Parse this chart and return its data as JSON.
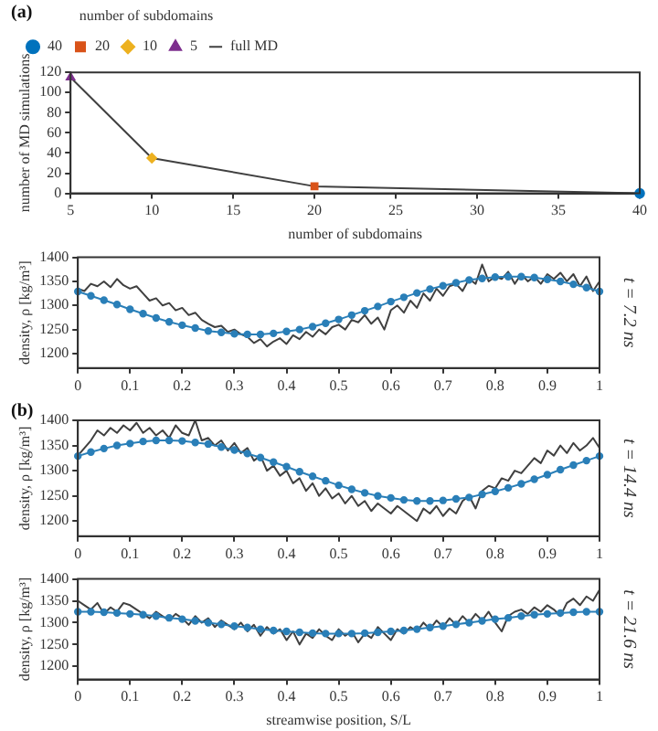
{
  "chart_data": [
    {
      "type": "line",
      "xlabel": "number of subdomains",
      "ylabel": "number of MD simulations",
      "annotations": [
        "(a)"
      ],
      "legend": "top left",
      "legend_title": "number of subdomains",
      "xlim": [
        5,
        40
      ],
      "xticks": [
        5,
        10,
        15,
        20,
        25,
        30,
        35,
        40
      ],
      "ylim": [
        0,
        120
      ],
      "yticks": [
        0,
        20,
        40,
        60,
        80,
        100,
        120
      ],
      "grid": false,
      "series": [
        {
          "name": "40",
          "type": "scatter",
          "marker": "circle",
          "color": "#0072bd",
          "x": [
            40
          ],
          "values": [
            0
          ]
        },
        {
          "name": "20",
          "type": "scatter",
          "marker": "square",
          "color": "#d95319",
          "x": [
            20
          ],
          "values": [
            7
          ]
        },
        {
          "name": "10",
          "type": "scatter",
          "marker": "diamond",
          "color": "#edb120",
          "x": [
            10
          ],
          "values": [
            35
          ]
        },
        {
          "name": "5",
          "type": "scatter",
          "marker": "triangle",
          "color": "#7e2f8e",
          "x": [
            5
          ],
          "values": [
            115
          ]
        },
        {
          "name": "full MD",
          "type": "line",
          "marker": "none",
          "color": "#404040",
          "x": [
            5,
            10,
            20,
            40
          ],
          "values": [
            115,
            35,
            7,
            0
          ]
        }
      ]
    },
    {
      "type": "line",
      "ylabel": "density, ρ [kg/m³]",
      "y2label": "t = 7.2 ns",
      "xlim": [
        0,
        1
      ],
      "xticks": [
        0,
        0.1,
        0.2,
        0.3,
        0.4,
        0.5,
        0.6,
        0.7,
        0.8,
        0.9,
        1
      ],
      "ylim": [
        1170,
        1400
      ],
      "yticks": [
        1200,
        1250,
        1300,
        1350,
        1400
      ],
      "grid": false,
      "series": [
        {
          "marker": "circle",
          "color": "#2a7fb8",
          "x": [
            0,
            0.025,
            0.05,
            0.075,
            0.1,
            0.125,
            0.15,
            0.175,
            0.2,
            0.225,
            0.25,
            0.275,
            0.3,
            0.325,
            0.35,
            0.375,
            0.4,
            0.425,
            0.45,
            0.475,
            0.5,
            0.525,
            0.55,
            0.575,
            0.6,
            0.625,
            0.65,
            0.675,
            0.7,
            0.725,
            0.75,
            0.775,
            0.8,
            0.825,
            0.85,
            0.875,
            0.9,
            0.925,
            0.95,
            0.975,
            1
          ],
          "values": [
            1329,
            1320,
            1311,
            1302,
            1292,
            1283,
            1274,
            1266,
            1259,
            1253,
            1247,
            1244,
            1241,
            1240,
            1240,
            1242,
            1246,
            1250,
            1256,
            1263,
            1271,
            1280,
            1289,
            1298,
            1308,
            1317,
            1326,
            1334,
            1341,
            1347,
            1353,
            1356,
            1359,
            1360,
            1360,
            1358,
            1354,
            1350,
            1344,
            1337,
            1329
          ]
        },
        {
          "marker": "none",
          "color": "#404040",
          "x": [
            0,
            0.0125,
            0.025,
            0.0375,
            0.05,
            0.0625,
            0.075,
            0.0875,
            0.1,
            0.1125,
            0.125,
            0.1375,
            0.15,
            0.1625,
            0.175,
            0.1875,
            0.2,
            0.2125,
            0.225,
            0.2375,
            0.25,
            0.2625,
            0.275,
            0.2875,
            0.3,
            0.3125,
            0.325,
            0.3375,
            0.35,
            0.3625,
            0.375,
            0.3875,
            0.4,
            0.4125,
            0.425,
            0.4375,
            0.45,
            0.4625,
            0.475,
            0.4875,
            0.5,
            0.5125,
            0.525,
            0.5375,
            0.55,
            0.5625,
            0.575,
            0.5875,
            0.6,
            0.6125,
            0.625,
            0.6375,
            0.65,
            0.6625,
            0.675,
            0.6875,
            0.7,
            0.7125,
            0.725,
            0.7375,
            0.75,
            0.7625,
            0.775,
            0.7875,
            0.8,
            0.8125,
            0.825,
            0.8375,
            0.85,
            0.8625,
            0.875,
            0.8875,
            0.9,
            0.9125,
            0.925,
            0.9375,
            0.95,
            0.9625,
            0.975,
            0.9875,
            1
          ],
          "values": [
            1335,
            1330,
            1345,
            1340,
            1350,
            1338,
            1355,
            1342,
            1335,
            1340,
            1325,
            1310,
            1315,
            1300,
            1305,
            1290,
            1295,
            1280,
            1285,
            1270,
            1262,
            1255,
            1258,
            1245,
            1250,
            1240,
            1235,
            1222,
            1230,
            1215,
            1225,
            1232,
            1220,
            1238,
            1230,
            1245,
            1235,
            1250,
            1240,
            1255,
            1260,
            1250,
            1270,
            1265,
            1280,
            1262,
            1275,
            1250,
            1290,
            1300,
            1285,
            1310,
            1295,
            1325,
            1310,
            1335,
            1320,
            1340,
            1345,
            1330,
            1355,
            1345,
            1385,
            1350,
            1360,
            1355,
            1370,
            1345,
            1365,
            1350,
            1360,
            1345,
            1365,
            1355,
            1368,
            1350,
            1365,
            1340,
            1360,
            1330,
            1350
          ]
        }
      ]
    },
    {
      "type": "line",
      "ylabel": "density, ρ [kg/m³]",
      "y2label": "t = 14.4 ns",
      "annotations": [
        "(b)"
      ],
      "xlim": [
        0,
        1
      ],
      "xticks": [
        0,
        0.1,
        0.2,
        0.3,
        0.4,
        0.5,
        0.6,
        0.7,
        0.8,
        0.9,
        1
      ],
      "ylim": [
        1170,
        1400
      ],
      "yticks": [
        1200,
        1250,
        1300,
        1350,
        1400
      ],
      "grid": false,
      "series": [
        {
          "marker": "circle",
          "color": "#2a7fb8",
          "x": [
            0,
            0.025,
            0.05,
            0.075,
            0.1,
            0.125,
            0.15,
            0.175,
            0.2,
            0.225,
            0.25,
            0.275,
            0.3,
            0.325,
            0.35,
            0.375,
            0.4,
            0.425,
            0.45,
            0.475,
            0.5,
            0.525,
            0.55,
            0.575,
            0.6,
            0.625,
            0.65,
            0.675,
            0.7,
            0.725,
            0.75,
            0.775,
            0.8,
            0.825,
            0.85,
            0.875,
            0.9,
            0.925,
            0.95,
            0.975,
            1
          ],
          "values": [
            1329,
            1337,
            1344,
            1350,
            1354,
            1358,
            1360,
            1360,
            1359,
            1356,
            1353,
            1347,
            1341,
            1334,
            1326,
            1317,
            1308,
            1298,
            1289,
            1280,
            1271,
            1263,
            1256,
            1250,
            1246,
            1242,
            1240,
            1240,
            1241,
            1244,
            1247,
            1253,
            1259,
            1266,
            1274,
            1283,
            1292,
            1302,
            1311,
            1320,
            1329
          ]
        },
        {
          "marker": "none",
          "color": "#404040",
          "x": [
            0,
            0.0125,
            0.025,
            0.0375,
            0.05,
            0.0625,
            0.075,
            0.0875,
            0.1,
            0.1125,
            0.125,
            0.1375,
            0.15,
            0.1625,
            0.175,
            0.1875,
            0.2,
            0.2125,
            0.225,
            0.2375,
            0.25,
            0.2625,
            0.275,
            0.2875,
            0.3,
            0.3125,
            0.325,
            0.3375,
            0.35,
            0.3625,
            0.375,
            0.3875,
            0.4,
            0.4125,
            0.425,
            0.4375,
            0.45,
            0.4625,
            0.475,
            0.4875,
            0.5,
            0.5125,
            0.525,
            0.5375,
            0.55,
            0.5625,
            0.575,
            0.5875,
            0.6,
            0.6125,
            0.625,
            0.6375,
            0.65,
            0.6625,
            0.675,
            0.6875,
            0.7,
            0.7125,
            0.725,
            0.7375,
            0.75,
            0.7625,
            0.775,
            0.7875,
            0.8,
            0.8125,
            0.825,
            0.8375,
            0.85,
            0.8625,
            0.875,
            0.8875,
            0.9,
            0.9125,
            0.925,
            0.9375,
            0.95,
            0.9625,
            0.975,
            0.9875,
            1
          ],
          "values": [
            1330,
            1345,
            1360,
            1380,
            1370,
            1385,
            1375,
            1390,
            1380,
            1395,
            1375,
            1385,
            1370,
            1380,
            1365,
            1390,
            1375,
            1370,
            1400,
            1360,
            1365,
            1350,
            1360,
            1340,
            1355,
            1335,
            1345,
            1320,
            1330,
            1300,
            1310,
            1290,
            1300,
            1275,
            1285,
            1260,
            1275,
            1250,
            1265,
            1245,
            1255,
            1235,
            1250,
            1230,
            1240,
            1220,
            1235,
            1225,
            1215,
            1230,
            1220,
            1210,
            1200,
            1225,
            1215,
            1230,
            1210,
            1225,
            1215,
            1240,
            1250,
            1225,
            1260,
            1270,
            1265,
            1285,
            1280,
            1300,
            1295,
            1310,
            1325,
            1315,
            1340,
            1330,
            1350,
            1335,
            1355,
            1340,
            1350,
            1365,
            1345
          ]
        }
      ]
    },
    {
      "type": "line",
      "xlabel": "streamwise position, S/L",
      "ylabel": "density, ρ [kg/m³]",
      "y2label": "t = 21.6 ns",
      "xlim": [
        0,
        1
      ],
      "xticks": [
        0,
        0.1,
        0.2,
        0.3,
        0.4,
        0.5,
        0.6,
        0.7,
        0.8,
        0.9,
        1
      ],
      "ylim": [
        1170,
        1400
      ],
      "yticks": [
        1200,
        1250,
        1300,
        1350,
        1400
      ],
      "grid": false,
      "series": [
        {
          "marker": "circle",
          "color": "#2a7fb8",
          "x": [
            0,
            0.025,
            0.05,
            0.075,
            0.1,
            0.125,
            0.15,
            0.175,
            0.2,
            0.225,
            0.25,
            0.275,
            0.3,
            0.325,
            0.35,
            0.375,
            0.4,
            0.425,
            0.45,
            0.475,
            0.5,
            0.525,
            0.55,
            0.575,
            0.6,
            0.625,
            0.65,
            0.675,
            0.7,
            0.725,
            0.75,
            0.775,
            0.8,
            0.825,
            0.85,
            0.875,
            0.9,
            0.925,
            0.95,
            0.975,
            1
          ],
          "values": [
            1325,
            1325,
            1324,
            1322,
            1320,
            1318,
            1315,
            1311,
            1308,
            1304,
            1300,
            1296,
            1292,
            1289,
            1285,
            1282,
            1280,
            1278,
            1276,
            1275,
            1275,
            1275,
            1276,
            1278,
            1280,
            1282,
            1285,
            1289,
            1292,
            1296,
            1300,
            1304,
            1308,
            1311,
            1315,
            1318,
            1320,
            1322,
            1324,
            1325,
            1325
          ]
        },
        {
          "marker": "none",
          "color": "#404040",
          "x": [
            0,
            0.0125,
            0.025,
            0.0375,
            0.05,
            0.0625,
            0.075,
            0.0875,
            0.1,
            0.1125,
            0.125,
            0.1375,
            0.15,
            0.1625,
            0.175,
            0.1875,
            0.2,
            0.2125,
            0.225,
            0.2375,
            0.25,
            0.2625,
            0.275,
            0.2875,
            0.3,
            0.3125,
            0.325,
            0.3375,
            0.35,
            0.3625,
            0.375,
            0.3875,
            0.4,
            0.4125,
            0.425,
            0.4375,
            0.45,
            0.4625,
            0.475,
            0.4875,
            0.5,
            0.5125,
            0.525,
            0.5375,
            0.55,
            0.5625,
            0.575,
            0.5875,
            0.6,
            0.6125,
            0.625,
            0.6375,
            0.65,
            0.6625,
            0.675,
            0.6875,
            0.7,
            0.7125,
            0.725,
            0.7375,
            0.75,
            0.7625,
            0.775,
            0.7875,
            0.8,
            0.8125,
            0.825,
            0.8375,
            0.85,
            0.8625,
            0.875,
            0.8875,
            0.9,
            0.9125,
            0.925,
            0.9375,
            0.95,
            0.9625,
            0.975,
            0.9875,
            1
          ],
          "values": [
            1350,
            1340,
            1330,
            1345,
            1320,
            1335,
            1325,
            1345,
            1340,
            1330,
            1320,
            1310,
            1325,
            1315,
            1305,
            1320,
            1310,
            1295,
            1315,
            1300,
            1310,
            1290,
            1305,
            1295,
            1285,
            1300,
            1280,
            1295,
            1270,
            1290,
            1275,
            1285,
            1260,
            1280,
            1250,
            1275,
            1265,
            1285,
            1270,
            1260,
            1285,
            1270,
            1280,
            1255,
            1275,
            1265,
            1290,
            1275,
            1260,
            1285,
            1275,
            1290,
            1280,
            1300,
            1285,
            1305,
            1290,
            1310,
            1295,
            1315,
            1300,
            1320,
            1305,
            1325,
            1300,
            1280,
            1315,
            1325,
            1330,
            1320,
            1335,
            1325,
            1340,
            1330,
            1315,
            1345,
            1355,
            1340,
            1360,
            1350,
            1375
          ]
        }
      ]
    }
  ]
}
